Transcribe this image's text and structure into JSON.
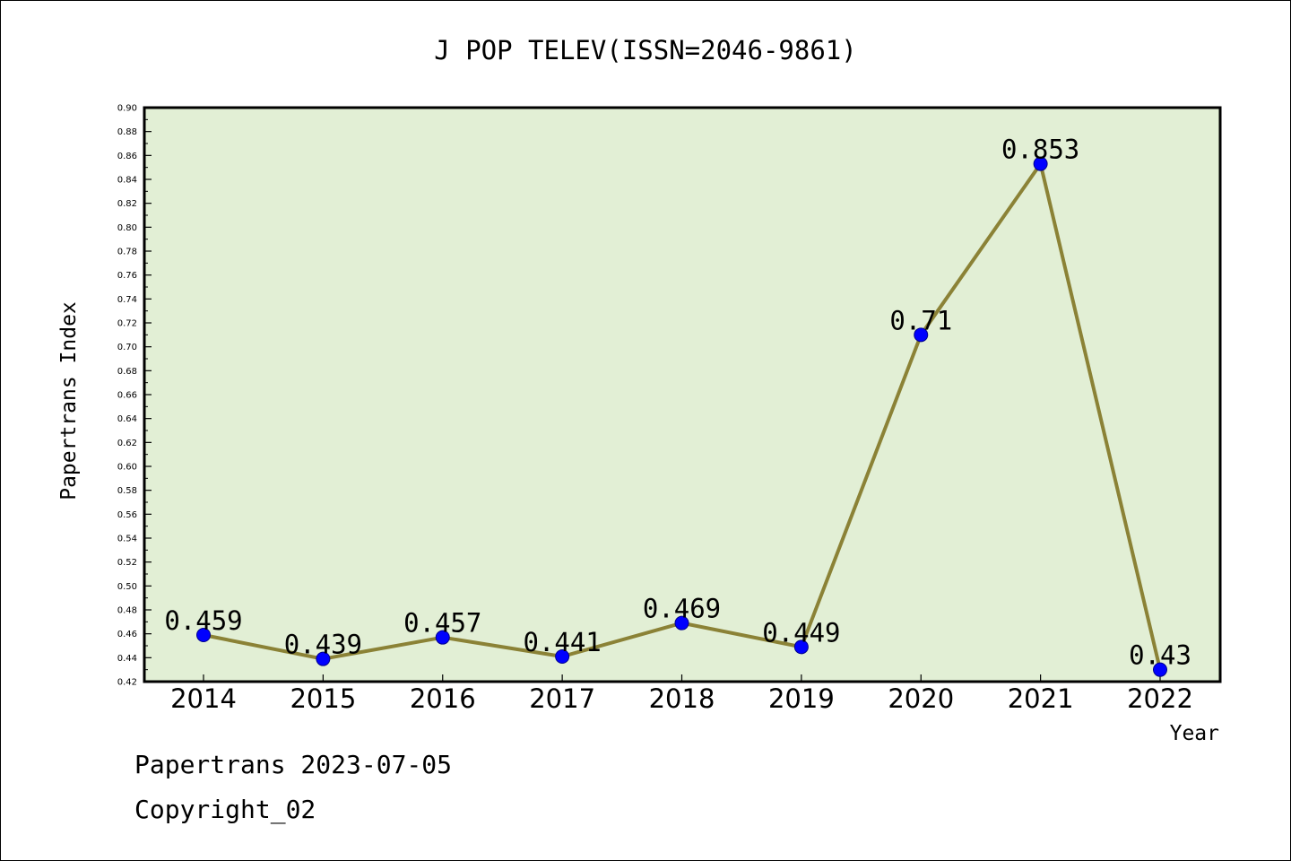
{
  "colors": {
    "plot_background": "#e2efd5",
    "line": "#8b8236",
    "marker_fill": "#0000ff",
    "marker_stroke": "#00008b",
    "axis": "#000000",
    "text": "#000000"
  },
  "chart_data": {
    "type": "line",
    "title": "J POP TELEV(ISSN=2046-9861)",
    "xlabel": "Year",
    "ylabel": "Papertrans Index",
    "categories": [
      "2014",
      "2015",
      "2016",
      "2017",
      "2018",
      "2019",
      "2020",
      "2021",
      "2022"
    ],
    "series": [
      {
        "values": [
          0.459,
          0.439,
          0.457,
          0.441,
          0.469,
          0.449,
          0.71,
          0.853,
          0.43
        ],
        "labels": [
          "0.459",
          "0.439",
          "0.457",
          "0.441",
          "0.469",
          "0.449",
          "0.71",
          "0.853",
          "0.43"
        ]
      }
    ],
    "ylim": [
      0.42,
      0.9
    ],
    "yticks": [
      "0.42",
      "0.44",
      "0.46",
      "0.48",
      "0.50",
      "0.52",
      "0.54",
      "0.56",
      "0.58",
      "0.60",
      "0.62",
      "0.64",
      "0.66",
      "0.68",
      "0.70",
      "0.72",
      "0.74",
      "0.76",
      "0.78",
      "0.80",
      "0.82",
      "0.84",
      "0.86",
      "0.88",
      "0.90"
    ],
    "grid": false,
    "legend": "none"
  },
  "footer": {
    "date_line": "Papertrans 2023-07-05",
    "copyright_line": "Copyright_02"
  }
}
